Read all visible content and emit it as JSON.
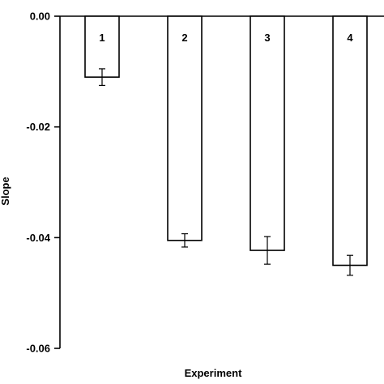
{
  "chart_data": {
    "type": "bar",
    "title": "",
    "xlabel": "Experiment",
    "ylabel": "Slope",
    "ylim": [
      -0.06,
      0.0
    ],
    "yticks": [
      0.0,
      -0.02,
      -0.04,
      -0.06
    ],
    "ytick_labels": [
      "0.00",
      "-0.02",
      "-0.04",
      "-0.06"
    ],
    "grid": false,
    "legend": "none",
    "categories": [
      "1",
      "2",
      "3",
      "4"
    ],
    "values": [
      -0.011,
      -0.0405,
      -0.0423,
      -0.045
    ],
    "errors": [
      0.0015,
      0.0012,
      0.0025,
      0.0018
    ],
    "colors": {
      "bar_fill": "#ffffff",
      "stroke": "#000000"
    }
  }
}
